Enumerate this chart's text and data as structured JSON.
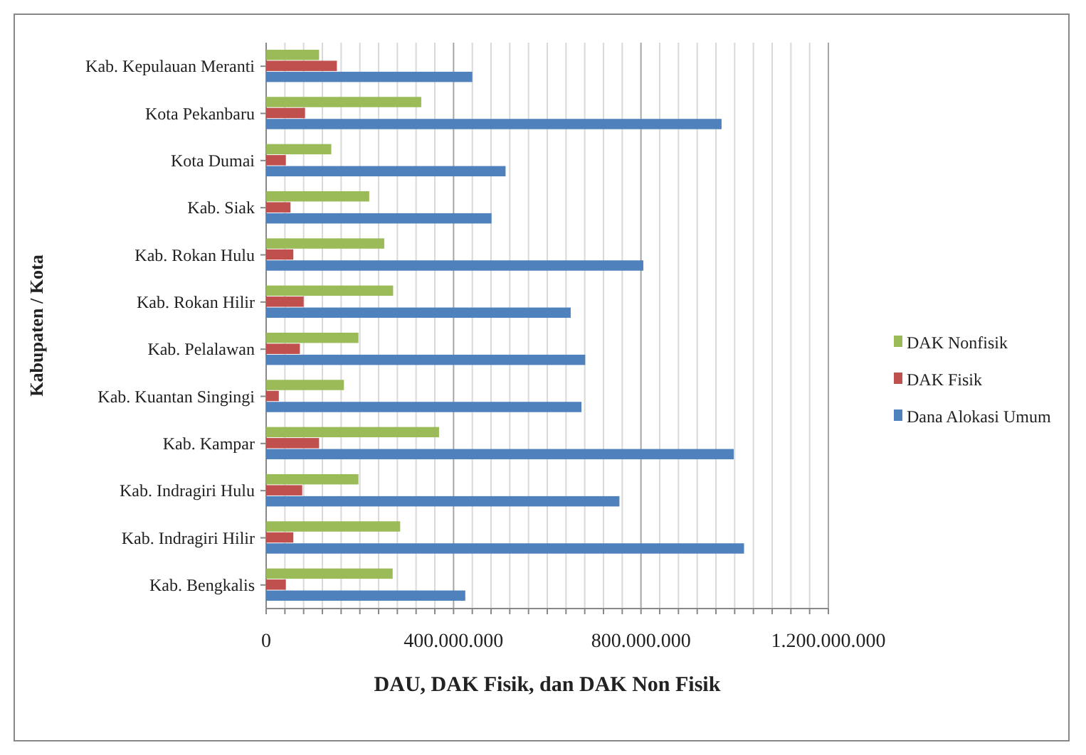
{
  "chart_data": {
    "type": "bar",
    "orientation": "horizontal",
    "xlabel": "DAU, DAK Fisik, dan DAK Non Fisik",
    "ylabel": "Kabupaten / Kota",
    "categories": [
      "Kab. Kepulauan Meranti",
      "Kota Pekanbaru",
      "Kota Dumai",
      "Kab. Siak",
      "Kab. Rokan Hulu",
      "Kab. Rokan Hilir",
      "Kab. Pelalawan",
      "Kab. Kuantan Singingi",
      "Kab. Kampar",
      "Kab. Indragiri Hulu",
      "Kab. Indragiri Hilir",
      "Kab. Bengkalis"
    ],
    "series": [
      {
        "name": "DAK Nonfisik",
        "color": "#9bbb59",
        "values": [
          113000000,
          331000000,
          139000000,
          220000000,
          252000000,
          271000000,
          197000000,
          166000000,
          369000000,
          197000000,
          286000000,
          270000000
        ]
      },
      {
        "name": "DAK Fisik",
        "color": "#c0504d",
        "values": [
          151000000,
          83000000,
          42000000,
          52000000,
          58000000,
          80000000,
          72000000,
          27000000,
          113000000,
          77000000,
          58000000,
          42000000
        ]
      },
      {
        "name": "Dana Alokasi Umum",
        "color": "#4f81bd",
        "values": [
          440000000,
          972000000,
          511000000,
          481000000,
          805000000,
          650000000,
          681000000,
          673000000,
          998000000,
          754000000,
          1020000000,
          425000000
        ]
      }
    ],
    "xlim": [
      0,
      1200000000
    ],
    "xticks": [
      0,
      {
        "value": 40000000,
        "label": null
      },
      {
        "value": 80000000,
        "label": null
      },
      {
        "value": 120000000,
        "label": null
      },
      {
        "value": 160000000,
        "label": null
      },
      {
        "value": 200000000,
        "label": null
      },
      {
        "value": 240000000,
        "label": null
      },
      {
        "value": 280000000,
        "label": null
      },
      {
        "value": 320000000,
        "label": null
      },
      {
        "value": 360000000,
        "label": null
      },
      {
        "value": 400000000,
        "label": "400.000.000"
      },
      {
        "value": 440000000,
        "label": null
      },
      {
        "value": 480000000,
        "label": null
      },
      {
        "value": 520000000,
        "label": null
      },
      {
        "value": 560000000,
        "label": null
      },
      {
        "value": 600000000,
        "label": null
      },
      {
        "value": 640000000,
        "label": null
      },
      {
        "value": 680000000,
        "label": null
      },
      {
        "value": 720000000,
        "label": null
      },
      {
        "value": 760000000,
        "label": null
      },
      {
        "value": 800000000,
        "label": "800.000.000"
      },
      {
        "value": 840000000,
        "label": null
      },
      {
        "value": 880000000,
        "label": null
      },
      {
        "value": 920000000,
        "label": null
      },
      {
        "value": 960000000,
        "label": null
      },
      {
        "value": 1000000000,
        "label": null
      },
      {
        "value": 1040000000,
        "label": null
      },
      {
        "value": 1080000000,
        "label": null
      },
      {
        "value": 1120000000,
        "label": null
      },
      {
        "value": 1160000000,
        "label": null
      },
      {
        "value": 1200000000,
        "label": "1.200.000.000"
      }
    ],
    "grid": "x",
    "legend": "right"
  }
}
